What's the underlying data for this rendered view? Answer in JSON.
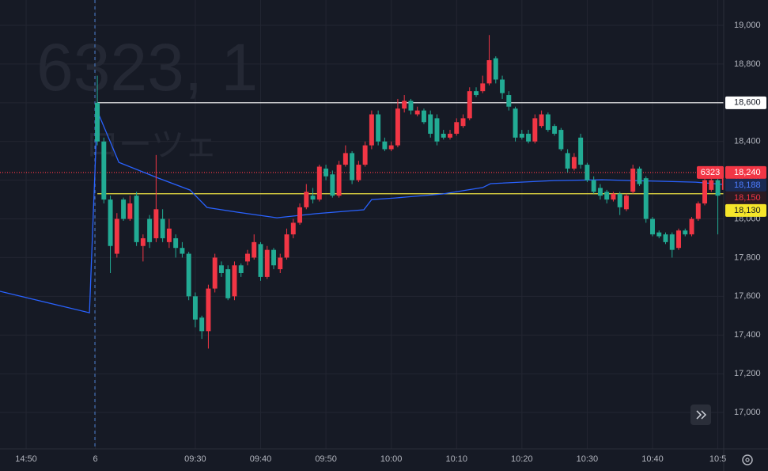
{
  "chart_data": {
    "type": "candlestick",
    "watermark": "6323, 1",
    "watermark_sub": "ローツェ",
    "ylim": [
      16812,
      19131
    ],
    "xlim": [
      -14.9,
      95.9
    ],
    "yticks": [
      {
        "value": 17000,
        "label": "17,000"
      },
      {
        "value": 17200,
        "label": "17,200"
      },
      {
        "value": 17400,
        "label": "17,400"
      },
      {
        "value": 17600,
        "label": "17,600"
      },
      {
        "value": 17800,
        "label": "17,800"
      },
      {
        "value": 18000,
        "label": "18,000"
      },
      {
        "value": 18200,
        "label": "18,200"
      },
      {
        "value": 18400,
        "label": "18,400"
      },
      {
        "value": 18600,
        "label": "18,600"
      },
      {
        "value": 18800,
        "label": "18,800"
      },
      {
        "value": 19000,
        "label": "19,000"
      }
    ],
    "xticks": [
      {
        "value": -10.9,
        "label": "14:50"
      },
      {
        "value": -0.3,
        "label": "6"
      },
      {
        "value": 15,
        "label": "09:30"
      },
      {
        "value": 25,
        "label": "09:40"
      },
      {
        "value": 35,
        "label": "09:50"
      },
      {
        "value": 45,
        "label": "10:00"
      },
      {
        "value": 55,
        "label": "10:10"
      },
      {
        "value": 65,
        "label": "10:20"
      },
      {
        "value": 75,
        "label": "10:30"
      },
      {
        "value": 85,
        "label": "10:40"
      },
      {
        "value": 95,
        "label": "10:5"
      }
    ],
    "grid": true,
    "up_color": "#f23645",
    "down_color": "#22ab94",
    "candles": [
      {
        "o": 18600,
        "h": 18740,
        "l": 18380,
        "c": 18400
      },
      {
        "o": 18400,
        "h": 18420,
        "l": 18080,
        "c": 18100
      },
      {
        "o": 18100,
        "h": 18120,
        "l": 17720,
        "c": 17860
      },
      {
        "o": 17820,
        "h": 18030,
        "l": 17800,
        "c": 18000
      },
      {
        "o": 18100,
        "h": 18110,
        "l": 17990,
        "c": 18000
      },
      {
        "o": 18000,
        "h": 18120,
        "l": 17990,
        "c": 18080
      },
      {
        "o": 18120,
        "h": 18140,
        "l": 17860,
        "c": 17880
      },
      {
        "o": 17860,
        "h": 17920,
        "l": 17780,
        "c": 17900
      },
      {
        "o": 18000,
        "h": 18020,
        "l": 17850,
        "c": 17880
      },
      {
        "o": 17900,
        "h": 18330,
        "l": 17880,
        "c": 18050
      },
      {
        "o": 18000,
        "h": 18050,
        "l": 17880,
        "c": 17900
      },
      {
        "o": 17880,
        "h": 18000,
        "l": 17850,
        "c": 17950
      },
      {
        "o": 17900,
        "h": 17920,
        "l": 17800,
        "c": 17850
      },
      {
        "o": 17850,
        "h": 17880,
        "l": 17800,
        "c": 17820
      },
      {
        "o": 17820,
        "h": 17830,
        "l": 17580,
        "c": 17600
      },
      {
        "o": 17600,
        "h": 17620,
        "l": 17440,
        "c": 17480
      },
      {
        "o": 17490,
        "h": 17500,
        "l": 17380,
        "c": 17420
      },
      {
        "o": 17420,
        "h": 17660,
        "l": 17330,
        "c": 17640
      },
      {
        "o": 17640,
        "h": 17820,
        "l": 17620,
        "c": 17800
      },
      {
        "o": 17760,
        "h": 17780,
        "l": 17700,
        "c": 17720
      },
      {
        "o": 17740,
        "h": 17760,
        "l": 17580,
        "c": 17590
      },
      {
        "o": 17600,
        "h": 17780,
        "l": 17580,
        "c": 17760
      },
      {
        "o": 17760,
        "h": 17770,
        "l": 17700,
        "c": 17720
      },
      {
        "o": 17780,
        "h": 17840,
        "l": 17760,
        "c": 17820
      },
      {
        "o": 17800,
        "h": 17920,
        "l": 17790,
        "c": 17880
      },
      {
        "o": 17870,
        "h": 17880,
        "l": 17680,
        "c": 17700
      },
      {
        "o": 17700,
        "h": 17860,
        "l": 17690,
        "c": 17840
      },
      {
        "o": 17840,
        "h": 17850,
        "l": 17740,
        "c": 17760
      },
      {
        "o": 17740,
        "h": 17820,
        "l": 17720,
        "c": 17800
      },
      {
        "o": 17800,
        "h": 17950,
        "l": 17790,
        "c": 17920
      },
      {
        "o": 17920,
        "h": 18000,
        "l": 17900,
        "c": 17980
      },
      {
        "o": 17980,
        "h": 18080,
        "l": 17970,
        "c": 18060
      },
      {
        "o": 18060,
        "h": 18180,
        "l": 18050,
        "c": 18140
      },
      {
        "o": 18120,
        "h": 18160,
        "l": 18080,
        "c": 18100
      },
      {
        "o": 18100,
        "h": 18280,
        "l": 18090,
        "c": 18270
      },
      {
        "o": 18260,
        "h": 18280,
        "l": 18200,
        "c": 18220
      },
      {
        "o": 18230,
        "h": 18250,
        "l": 18110,
        "c": 18120
      },
      {
        "o": 18120,
        "h": 18300,
        "l": 18110,
        "c": 18280
      },
      {
        "o": 18280,
        "h": 18380,
        "l": 18270,
        "c": 18340
      },
      {
        "o": 18340,
        "h": 18350,
        "l": 18180,
        "c": 18200
      },
      {
        "o": 18200,
        "h": 18300,
        "l": 18190,
        "c": 18280
      },
      {
        "o": 18280,
        "h": 18400,
        "l": 18270,
        "c": 18380
      },
      {
        "o": 18380,
        "h": 18560,
        "l": 18360,
        "c": 18540
      },
      {
        "o": 18540,
        "h": 18560,
        "l": 18380,
        "c": 18400
      },
      {
        "o": 18400,
        "h": 18420,
        "l": 18350,
        "c": 18360
      },
      {
        "o": 18360,
        "h": 18400,
        "l": 18350,
        "c": 18380
      },
      {
        "o": 18380,
        "h": 18620,
        "l": 18370,
        "c": 18570
      },
      {
        "o": 18570,
        "h": 18640,
        "l": 18550,
        "c": 18610
      },
      {
        "o": 18610,
        "h": 18620,
        "l": 18540,
        "c": 18560
      },
      {
        "o": 18540,
        "h": 18580,
        "l": 18530,
        "c": 18560
      },
      {
        "o": 18560,
        "h": 18570,
        "l": 18490,
        "c": 18500
      },
      {
        "o": 18540,
        "h": 18560,
        "l": 18420,
        "c": 18440
      },
      {
        "o": 18520,
        "h": 18540,
        "l": 18380,
        "c": 18400
      },
      {
        "o": 18440,
        "h": 18460,
        "l": 18410,
        "c": 18420
      },
      {
        "o": 18420,
        "h": 18460,
        "l": 18410,
        "c": 18440
      },
      {
        "o": 18440,
        "h": 18520,
        "l": 18430,
        "c": 18500
      },
      {
        "o": 18480,
        "h": 18540,
        "l": 18470,
        "c": 18520
      },
      {
        "o": 18520,
        "h": 18680,
        "l": 18510,
        "c": 18660
      },
      {
        "o": 18660,
        "h": 18680,
        "l": 18630,
        "c": 18640
      },
      {
        "o": 18660,
        "h": 18740,
        "l": 18650,
        "c": 18700
      },
      {
        "o": 18700,
        "h": 18950,
        "l": 18690,
        "c": 18820
      },
      {
        "o": 18830,
        "h": 18840,
        "l": 18700,
        "c": 18720
      },
      {
        "o": 18720,
        "h": 18740,
        "l": 18620,
        "c": 18650
      },
      {
        "o": 18640,
        "h": 18660,
        "l": 18560,
        "c": 18580
      },
      {
        "o": 18570,
        "h": 18580,
        "l": 18400,
        "c": 18420
      },
      {
        "o": 18440,
        "h": 18460,
        "l": 18410,
        "c": 18420
      },
      {
        "o": 18440,
        "h": 18460,
        "l": 18390,
        "c": 18400
      },
      {
        "o": 18400,
        "h": 18540,
        "l": 18390,
        "c": 18520
      },
      {
        "o": 18480,
        "h": 18560,
        "l": 18470,
        "c": 18540
      },
      {
        "o": 18540,
        "h": 18550,
        "l": 18450,
        "c": 18460
      },
      {
        "o": 18480,
        "h": 18490,
        "l": 18430,
        "c": 18440
      },
      {
        "o": 18460,
        "h": 18470,
        "l": 18350,
        "c": 18360
      },
      {
        "o": 18340,
        "h": 18360,
        "l": 18240,
        "c": 18260
      },
      {
        "o": 18260,
        "h": 18340,
        "l": 18250,
        "c": 18320
      },
      {
        "o": 18420,
        "h": 18440,
        "l": 18260,
        "c": 18280
      },
      {
        "o": 18280,
        "h": 18290,
        "l": 18190,
        "c": 18200
      },
      {
        "o": 18200,
        "h": 18220,
        "l": 18130,
        "c": 18140
      },
      {
        "o": 18160,
        "h": 18180,
        "l": 18100,
        "c": 18120
      },
      {
        "o": 18140,
        "h": 18150,
        "l": 18080,
        "c": 18100
      },
      {
        "o": 18100,
        "h": 18140,
        "l": 18090,
        "c": 18130
      },
      {
        "o": 18130,
        "h": 18140,
        "l": 18020,
        "c": 18060
      },
      {
        "o": 18050,
        "h": 18130,
        "l": 18040,
        "c": 18120
      },
      {
        "o": 18140,
        "h": 18280,
        "l": 18130,
        "c": 18260
      },
      {
        "o": 18260,
        "h": 18270,
        "l": 18170,
        "c": 18180
      },
      {
        "o": 18210,
        "h": 18220,
        "l": 17980,
        "c": 18000
      },
      {
        "o": 18000,
        "h": 18010,
        "l": 17910,
        "c": 17920
      },
      {
        "o": 17930,
        "h": 17940,
        "l": 17900,
        "c": 17910
      },
      {
        "o": 17920,
        "h": 17930,
        "l": 17870,
        "c": 17880
      },
      {
        "o": 17920,
        "h": 17930,
        "l": 17800,
        "c": 17840
      },
      {
        "o": 17850,
        "h": 17950,
        "l": 17840,
        "c": 17940
      },
      {
        "o": 17940,
        "h": 17950,
        "l": 17910,
        "c": 17920
      },
      {
        "o": 17920,
        "h": 18010,
        "l": 17910,
        "c": 18000
      },
      {
        "o": 18000,
        "h": 18090,
        "l": 17990,
        "c": 18080
      },
      {
        "o": 18080,
        "h": 18230,
        "l": 18070,
        "c": 18200
      },
      {
        "o": 18150,
        "h": 18210,
        "l": 18140,
        "c": 18200
      },
      {
        "o": 18200,
        "h": 18210,
        "l": 17920,
        "c": 18120
      },
      {
        "o": 18150,
        "h": 18250,
        "l": 18140,
        "c": 18240
      }
    ],
    "vwap": {
      "color": "#2962ff",
      "x": [
        -14.9,
        -1.2,
        0,
        3.3,
        9.3,
        14.2,
        16.8,
        21.4,
        27.5,
        33.5,
        40.8,
        42,
        45.6,
        52.9,
        59,
        60.2,
        69.9,
        77.1,
        82,
        91.6,
        95.9
      ],
      "values": [
        17626,
        17515,
        18558,
        18292,
        18211,
        18149,
        18059,
        18035,
        18006,
        18027,
        18047,
        18100,
        18108,
        18129,
        18162,
        18182,
        18198,
        18202,
        18198,
        18190,
        18178
      ]
    },
    "hlines": [
      {
        "value": 18600,
        "color": "#ffffff",
        "from": 0,
        "style": "solid"
      },
      {
        "value": 18130,
        "color": "#f0e442",
        "from": 0,
        "style": "solid"
      },
      {
        "value": 18240,
        "color": "#f23645",
        "from": -14.9,
        "style": "dotted"
      }
    ],
    "price_tags": [
      {
        "value": 18600,
        "label": "18,600",
        "bg": "#ffffff",
        "fg": "#131722"
      },
      {
        "value": 18240,
        "label": "18,240",
        "bg": "#f23645",
        "fg": "#ffffff",
        "symbol": "6323"
      },
      {
        "value": 18188,
        "label": "18,188",
        "bg": "#1a2a52",
        "fg": "#4d7cff"
      },
      {
        "value": 18150,
        "label": "18,150",
        "bg": "#2a1a22",
        "fg": "#f23645"
      },
      {
        "value": 18130,
        "label": "18,130",
        "bg": "#f5e52a",
        "fg": "#131722"
      }
    ]
  }
}
